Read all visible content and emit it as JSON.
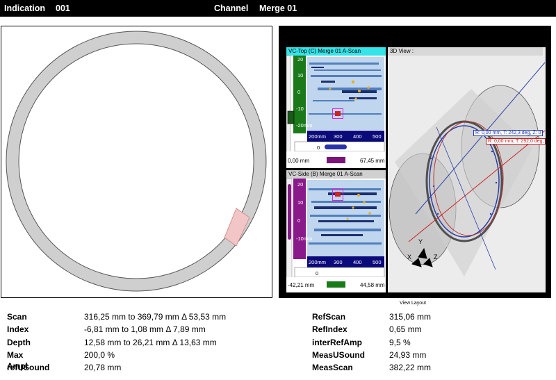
{
  "header": {
    "indication_label": "Indication",
    "indication_value": "001",
    "channel_label": "Channel",
    "channel_value": "Merge 01"
  },
  "top_view": {
    "title": "VC-Top (C) Merge 01 A-Scan",
    "ruler_x": [
      "200mm",
      "300",
      "400",
      "500"
    ],
    "ruler_y": [
      "20",
      "10",
      "0",
      "-10",
      "-20mm"
    ],
    "input_value": "0",
    "range_min": "0,00 mm",
    "range_max": "67,45 mm"
  },
  "side_view": {
    "title": "VC-Side (B) Merge 01 A-Scan",
    "ruler_x": [
      "200mm",
      "300",
      "400",
      "500"
    ],
    "ruler_y": [
      "20",
      "10",
      "0",
      "-10mm"
    ],
    "input_value": "0",
    "range_min": "-42,21 mm",
    "range_max": "44,58 mm"
  },
  "view_3d": {
    "title": "3D View :",
    "label_red": "R: 0,00 mm, T: 292,0 deg,",
    "label_blue": "R: 0,00 mm, T: 242,3 deg, Z: 0",
    "axis_y": "Y",
    "axis_x": "X",
    "axis_z": "Z"
  },
  "view_layout_label": "View Layout",
  "measurements_left": [
    {
      "label": "Scan",
      "value": "316,25 mm to 369,79 mm Δ 53,53 mm"
    },
    {
      "label": "Index",
      "value": "-6,81 mm to 1,08 mm Δ 7,89 mm"
    },
    {
      "label": "Depth",
      "value": "12,58 mm to 26,21 mm Δ 13,63 mm"
    },
    {
      "label": "Max Ampl",
      "value": "200,0 %"
    },
    {
      "label": "refUSound",
      "value": "20,78 mm"
    }
  ],
  "measurements_right": [
    {
      "label": "RefScan",
      "value": "315,06 mm"
    },
    {
      "label": "RefIndex",
      "value": "0,65 mm"
    },
    {
      "label": "interRefAmp",
      "value": "9,5 %"
    },
    {
      "label": "MeasUSound",
      "value": "24,93 mm"
    },
    {
      "label": "MeasScan",
      "value": "382,22 mm"
    }
  ],
  "colors": {
    "ring": "#cfcfcf",
    "ring_stroke": "#555555",
    "indication_zone": "#f2c6c6",
    "top_title_bg": "#35e3e8",
    "side_title_bg": "#d0d0d0",
    "top_ruler": "#1a7a1a",
    "side_ruler": "#8a1a8a",
    "scale_bar": "#0a0a7a"
  }
}
